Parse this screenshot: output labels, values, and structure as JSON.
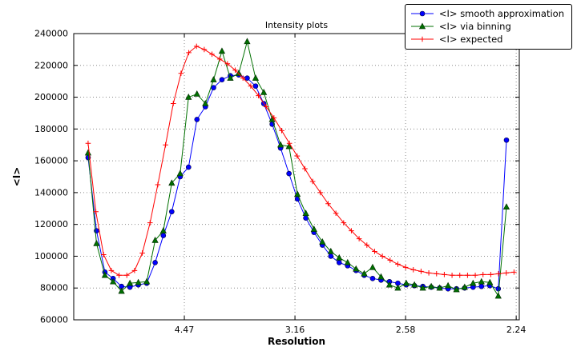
{
  "title": "Intensity plots",
  "chart_data": {
    "type": "line",
    "title": "Intensity plots",
    "xlabel": "Resolution",
    "ylabel": "<I>",
    "grid": true,
    "legend_position": "upper right, outside plot top edge",
    "x_scale_note": "x axis linear in 1/d^2, tick labels show resolution d in Angstrom (decreasing to the right)",
    "xlim": [
      0,
      0.2014
    ],
    "ylim": [
      60000,
      240000
    ],
    "xticks": [
      {
        "value": 0.05,
        "label": "4.47"
      },
      {
        "value": 0.1,
        "label": "3.16"
      },
      {
        "value": 0.15,
        "label": "2.58"
      },
      {
        "value": 0.2,
        "label": "2.24"
      }
    ],
    "yticks": [
      {
        "value": 60000,
        "label": "60000"
      },
      {
        "value": 80000,
        "label": "80000"
      },
      {
        "value": 100000,
        "label": "100000"
      },
      {
        "value": 120000,
        "label": "120000"
      },
      {
        "value": 140000,
        "label": "140000"
      },
      {
        "value": 160000,
        "label": "160000"
      },
      {
        "value": 180000,
        "label": "180000"
      },
      {
        "value": 200000,
        "label": "200000"
      },
      {
        "value": 220000,
        "label": "220000"
      },
      {
        "value": 240000,
        "label": "240000"
      }
    ],
    "series": [
      {
        "name": "<I> smooth approximation",
        "color": "#0000ff",
        "marker": "circle",
        "x": [
          0.0065,
          0.0103,
          0.0141,
          0.0178,
          0.0216,
          0.0254,
          0.0292,
          0.033,
          0.0368,
          0.0405,
          0.0443,
          0.0481,
          0.0519,
          0.0557,
          0.0595,
          0.0632,
          0.067,
          0.0708,
          0.0746,
          0.0784,
          0.0822,
          0.0859,
          0.0897,
          0.0935,
          0.0973,
          0.1011,
          0.1049,
          0.1086,
          0.1124,
          0.1162,
          0.12,
          0.1238,
          0.1276,
          0.1313,
          0.1351,
          0.1389,
          0.1427,
          0.1465,
          0.1503,
          0.154,
          0.1578,
          0.1616,
          0.1654,
          0.1692,
          0.173,
          0.1767,
          0.1805,
          0.1843,
          0.1881,
          0.1919,
          0.1956
        ],
        "y": [
          162000,
          116000,
          90000,
          86000,
          81000,
          80500,
          82000,
          83000,
          96000,
          113000,
          128000,
          150000,
          156000,
          186000,
          194000,
          206000,
          211000,
          213500,
          214000,
          212000,
          207000,
          196000,
          183000,
          168000,
          152000,
          136000,
          124000,
          115000,
          107000,
          100000,
          96000,
          94000,
          91000,
          88000,
          86000,
          85000,
          84000,
          83000,
          82000,
          81500,
          81000,
          80500,
          80000,
          79500,
          79500,
          80000,
          80500,
          81000,
          81500,
          79500,
          173000
        ]
      },
      {
        "name": "<I> via binning",
        "color": "#007000",
        "marker": "triangle",
        "x": [
          0.0065,
          0.0103,
          0.0141,
          0.0178,
          0.0216,
          0.0254,
          0.0292,
          0.033,
          0.0368,
          0.0405,
          0.0443,
          0.0481,
          0.0519,
          0.0557,
          0.0595,
          0.0632,
          0.067,
          0.0708,
          0.0746,
          0.0784,
          0.0822,
          0.0859,
          0.0897,
          0.0935,
          0.0973,
          0.1011,
          0.1049,
          0.1086,
          0.1124,
          0.1162,
          0.12,
          0.1238,
          0.1276,
          0.1313,
          0.1351,
          0.1389,
          0.1427,
          0.1465,
          0.1503,
          0.154,
          0.1578,
          0.1616,
          0.1654,
          0.1692,
          0.173,
          0.1767,
          0.1805,
          0.1843,
          0.1881,
          0.1919,
          0.1956
        ],
        "y": [
          165000,
          108000,
          88000,
          84000,
          78000,
          83000,
          83500,
          84000,
          110000,
          116000,
          146000,
          152000,
          200000,
          202000,
          196000,
          211000,
          229000,
          212000,
          215000,
          235000,
          212000,
          203000,
          186000,
          170000,
          169000,
          139000,
          127000,
          117000,
          109000,
          103000,
          99000,
          96000,
          92000,
          89000,
          93000,
          87000,
          82000,
          80000,
          83000,
          82000,
          80000,
          81000,
          80000,
          81500,
          79000,
          80500,
          83000,
          84000,
          83500,
          75000,
          131000
        ]
      },
      {
        "name": "<I> expected",
        "color": "#ff0000",
        "marker": "plus",
        "x": [
          0.0065,
          0.01,
          0.0135,
          0.017,
          0.0205,
          0.024,
          0.0275,
          0.031,
          0.0345,
          0.038,
          0.0415,
          0.045,
          0.0485,
          0.052,
          0.0555,
          0.059,
          0.0625,
          0.066,
          0.0695,
          0.073,
          0.0765,
          0.08,
          0.0835,
          0.087,
          0.0905,
          0.094,
          0.0975,
          0.101,
          0.1045,
          0.108,
          0.1115,
          0.115,
          0.1185,
          0.122,
          0.1255,
          0.129,
          0.1325,
          0.136,
          0.1395,
          0.143,
          0.1465,
          0.15,
          0.1535,
          0.157,
          0.1605,
          0.164,
          0.1675,
          0.171,
          0.1745,
          0.178,
          0.1815,
          0.185,
          0.1885,
          0.192,
          0.1955,
          0.199
        ],
        "y": [
          171000,
          128000,
          101000,
          91000,
          88000,
          88000,
          91000,
          102000,
          121000,
          145000,
          170000,
          196000,
          215000,
          228000,
          232000,
          230000,
          227000,
          224000,
          221000,
          217000,
          212000,
          207000,
          201000,
          194000,
          187000,
          179000,
          171000,
          163000,
          155000,
          147000,
          140000,
          133000,
          127000,
          121000,
          116000,
          111000,
          107000,
          103000,
          100000,
          97500,
          95000,
          93000,
          91500,
          90500,
          89500,
          89000,
          88500,
          88000,
          88000,
          88000,
          88000,
          88500,
          88500,
          89000,
          89500,
          90000
        ]
      }
    ]
  }
}
